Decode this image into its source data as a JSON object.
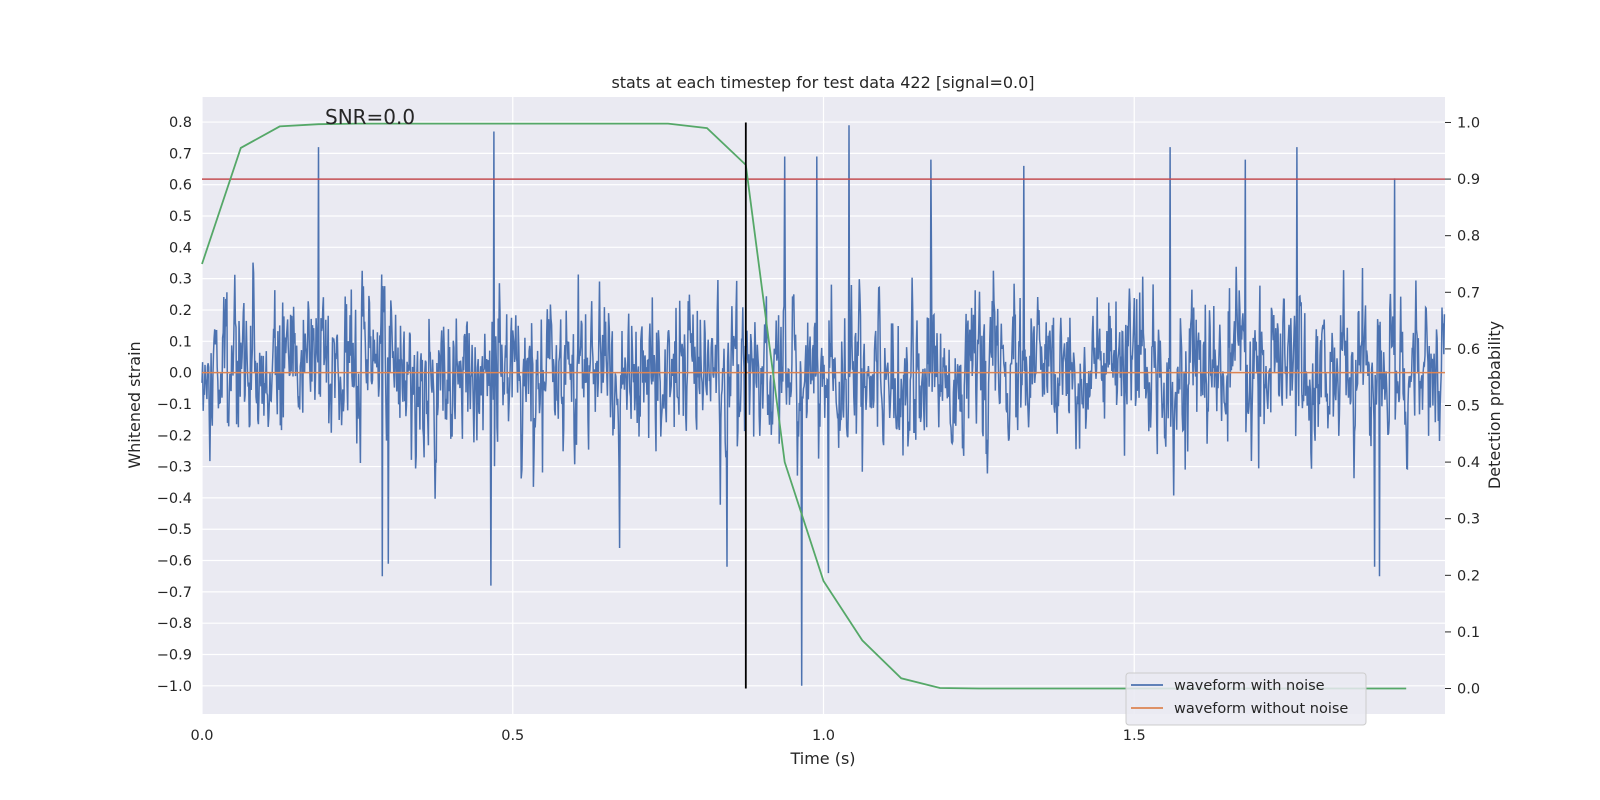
{
  "chart_data": {
    "type": "line",
    "title": "stats at each timestep for test data 422 [signal=0.0]",
    "xlabel": "Time (s)",
    "ylabel": "Whitened strain",
    "ylabel_right": "Detection probability",
    "annotation": "SNR=0.0",
    "xlim": [
      0.0,
      2.0
    ],
    "ylim": [
      -1.09,
      0.88
    ],
    "ylim_right": [
      -0.045,
      1.045
    ],
    "xticks": [
      0.0,
      0.5,
      1.0,
      1.5
    ],
    "xtick_labels": [
      "0.0",
      "0.5",
      "1.0",
      "1.5"
    ],
    "yticks": [
      0.8,
      0.7,
      0.6,
      0.5,
      0.4,
      0.3,
      0.2,
      0.1,
      0.0,
      -0.1,
      -0.2,
      -0.3,
      -0.4,
      -0.5,
      -0.6,
      -0.7,
      -0.8,
      -0.9,
      -1.0
    ],
    "ytick_labels": [
      "0.8",
      "0.7",
      "0.6",
      "0.5",
      "0.4",
      "0.3",
      "0.2",
      "0.1",
      "0.0",
      "−0.1",
      "−0.2",
      "−0.3",
      "−0.4",
      "−0.5",
      "−0.6",
      "−0.7",
      "−0.8",
      "−0.9",
      "−1.0"
    ],
    "yticks_right": [
      1.0,
      0.9,
      0.8,
      0.7,
      0.6,
      0.5,
      0.4,
      0.3,
      0.2,
      0.1,
      0.0
    ],
    "ytick_labels_right": [
      "1.0",
      "0.9",
      "0.8",
      "0.7",
      "0.6",
      "0.5",
      "0.4",
      "0.3",
      "0.2",
      "0.1",
      "0.0"
    ],
    "grid": true,
    "legend_position": "lower-right",
    "legend": [
      "waveform with noise",
      "waveform without noise"
    ],
    "series": [
      {
        "name": "waveform with noise",
        "axis": "left",
        "color": "#4c72b0",
        "noise": {
          "samples": 2048,
          "sigma": 0.19,
          "min": -1.0,
          "max": 0.79
        },
        "peaks": [
          {
            "x": 0.188,
            "y": 0.72
          },
          {
            "x": 0.47,
            "y": 0.77
          },
          {
            "x": 0.465,
            "y": -0.68
          },
          {
            "x": 0.29,
            "y": -0.65
          },
          {
            "x": 0.3,
            "y": -0.61
          },
          {
            "x": 0.672,
            "y": -0.56
          },
          {
            "x": 0.845,
            "y": -0.62
          },
          {
            "x": 0.938,
            "y": 0.69
          },
          {
            "x": 0.965,
            "y": -1.0
          },
          {
            "x": 0.99,
            "y": 0.69
          },
          {
            "x": 1.042,
            "y": 0.79
          },
          {
            "x": 1.008,
            "y": -0.64
          },
          {
            "x": 1.173,
            "y": 0.68
          },
          {
            "x": 1.323,
            "y": 0.66
          },
          {
            "x": 1.558,
            "y": 0.72
          },
          {
            "x": 1.763,
            "y": 0.72
          },
          {
            "x": 1.92,
            "y": 0.62
          },
          {
            "x": 1.888,
            "y": -0.62
          },
          {
            "x": 1.895,
            "y": -0.65
          },
          {
            "x": 1.68,
            "y": 0.68
          }
        ]
      },
      {
        "name": "waveform without noise",
        "axis": "left",
        "color": "#dd8452",
        "x": [
          0.0,
          2.0
        ],
        "y": [
          0.0,
          0.0
        ]
      },
      {
        "name": "detection probability",
        "axis": "right",
        "color": "#55a868",
        "x": [
          0.0,
          0.0625,
          0.125,
          0.1875,
          0.25,
          0.3125,
          0.375,
          0.4375,
          0.5,
          0.5625,
          0.625,
          0.6875,
          0.75,
          0.8125,
          0.875,
          0.9375,
          1.0,
          1.0625,
          1.125,
          1.1875,
          1.25,
          1.3125,
          1.375,
          1.4375,
          1.5,
          1.5625,
          1.625,
          1.6875,
          1.75,
          1.8125,
          1.875,
          1.9375
        ],
        "y": [
          0.75,
          0.955,
          0.993,
          0.997,
          0.998,
          0.998,
          0.998,
          0.998,
          0.998,
          0.998,
          0.998,
          0.998,
          0.998,
          0.99,
          0.925,
          0.4,
          0.19,
          0.085,
          0.018,
          0.001,
          0.0,
          0.0,
          0.0,
          0.0,
          0.0,
          0.0,
          0.0,
          0.0,
          0.0,
          0.0,
          0.0,
          0.0
        ]
      }
    ],
    "hlines": [
      {
        "axis": "right",
        "y": 0.9,
        "color": "#c44e52"
      }
    ],
    "vlines": [
      {
        "x": 0.875,
        "y_from": 0.0,
        "y_to": 1.0,
        "axis": "right",
        "color": "#000000"
      }
    ]
  }
}
